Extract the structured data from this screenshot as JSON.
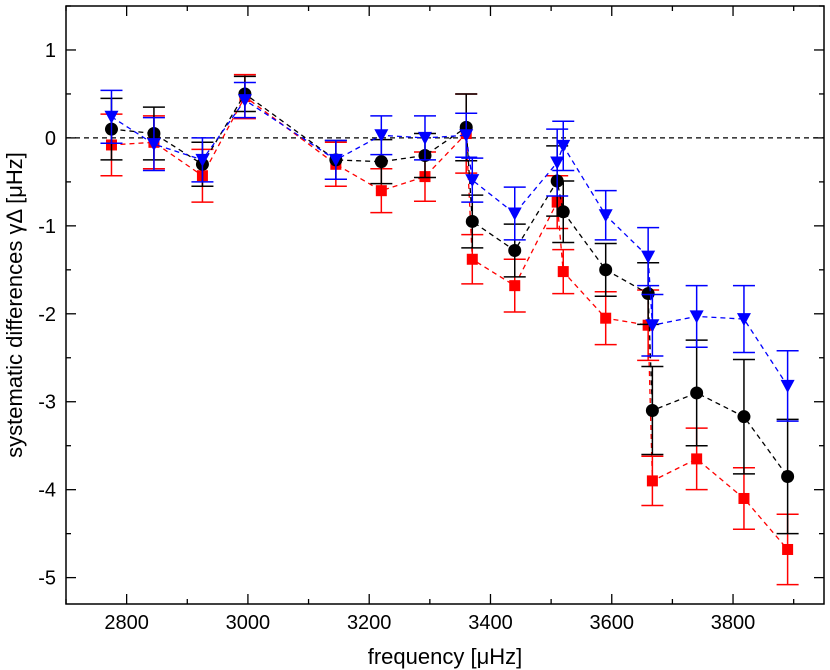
{
  "chart_data": {
    "type": "scatter",
    "title": "",
    "xlabel": "frequency [μHz]",
    "ylabel": "systematic differences γΔ  [μHz]",
    "xlim": [
      2700,
      3950
    ],
    "ylim": [
      -5.3,
      1.5
    ],
    "xticks": [
      2800,
      3000,
      3200,
      3400,
      3600,
      3800
    ],
    "yticks": [
      1,
      0,
      -1,
      -2,
      -3,
      -4,
      -5
    ],
    "xtick_labels": [
      "2800",
      "3000",
      "3200",
      "3400",
      "3600",
      "3800"
    ],
    "ytick_labels": [
      "1",
      "0",
      "-1",
      "-2",
      "-3",
      "-4",
      "-5"
    ],
    "reference_line": {
      "y": 0,
      "style": "dashed",
      "color": "#000000"
    },
    "grid": false,
    "series": [
      {
        "name": "red-squares",
        "color": "#ff0000",
        "marker": "square",
        "x": [
          2775,
          2845,
          2925,
          2995,
          3145,
          3220,
          3292,
          3360,
          3370,
          3440,
          3510,
          3520,
          3590,
          3660,
          3667,
          3740,
          3818,
          3890
        ],
        "y": [
          -0.08,
          -0.05,
          -0.43,
          0.47,
          -0.3,
          -0.6,
          -0.44,
          0.05,
          -1.38,
          -1.68,
          -0.73,
          -1.52,
          -2.05,
          -2.13,
          -3.9,
          -3.65,
          -4.1,
          -4.68
        ],
        "err": [
          0.35,
          0.3,
          0.3,
          0.25,
          0.25,
          0.25,
          0.28,
          0.45,
          0.28,
          0.3,
          0.3,
          0.25,
          0.3,
          0.4,
          0.28,
          0.35,
          0.35,
          0.4
        ]
      },
      {
        "name": "black-circles",
        "color": "#000000",
        "marker": "circle",
        "x": [
          2775,
          2845,
          2925,
          2995,
          3145,
          3220,
          3292,
          3360,
          3370,
          3440,
          3510,
          3520,
          3590,
          3660,
          3667,
          3740,
          3818,
          3890
        ],
        "y": [
          0.1,
          0.05,
          -0.3,
          0.5,
          -0.25,
          -0.27,
          -0.2,
          0.12,
          -0.95,
          -1.28,
          -0.49,
          -0.84,
          -1.5,
          -1.77,
          -3.1,
          -2.9,
          -3.17,
          -3.85
        ],
        "err": [
          0.35,
          0.3,
          0.25,
          0.2,
          0.22,
          0.25,
          0.25,
          0.38,
          0.3,
          0.3,
          0.4,
          0.35,
          0.3,
          0.35,
          0.5,
          0.6,
          0.65,
          0.65
        ]
      },
      {
        "name": "blue-triangles",
        "color": "#0000ff",
        "marker": "triangle-down",
        "x": [
          2775,
          2845,
          2925,
          2995,
          3145,
          3220,
          3292,
          3360,
          3370,
          3440,
          3510,
          3520,
          3590,
          3660,
          3667,
          3740,
          3818,
          3890
        ],
        "y": [
          0.24,
          -0.07,
          -0.25,
          0.43,
          -0.25,
          0.03,
          0.0,
          0.03,
          -0.48,
          -0.86,
          -0.28,
          -0.09,
          -0.88,
          -1.35,
          -2.13,
          -2.03,
          -2.06,
          -2.82
        ],
        "err": [
          0.3,
          0.3,
          0.25,
          0.2,
          0.22,
          0.22,
          0.25,
          0.25,
          0.25,
          0.3,
          0.38,
          0.28,
          0.28,
          0.33,
          0.35,
          0.35,
          0.38,
          0.4
        ]
      }
    ]
  }
}
